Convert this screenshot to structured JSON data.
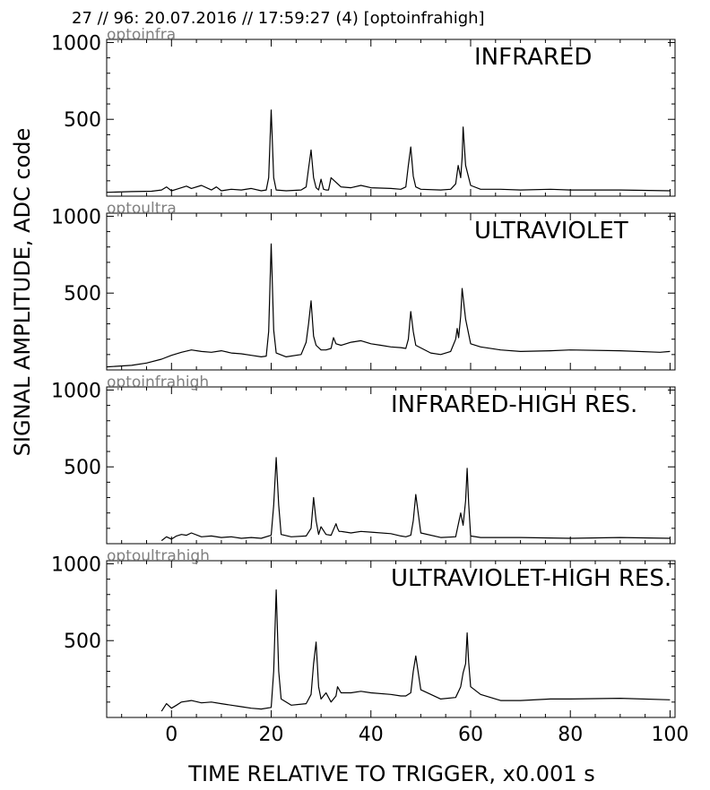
{
  "figure": {
    "header": "27 // 96:   20.07.2016 // 17:59:27 (4)  [optoinfrahigh]",
    "ylabel": "SIGNAL AMPLITUDE,  ADC code",
    "xlabel": "TIME RELATIVE TO TRIGGER,   x0.001 s"
  },
  "chart_data": [
    {
      "type": "line",
      "panel_tag": "optoinfra",
      "title": "INFRARED",
      "xlim": [
        -13,
        101
      ],
      "ylim": [
        0,
        1020
      ],
      "x_ticks": [
        0,
        20,
        40,
        60,
        80,
        100
      ],
      "y_ticks": [
        500,
        1000
      ],
      "series": [
        {
          "x": [
            -13,
            -8,
            -4,
            -2,
            -1,
            0,
            1,
            2,
            3,
            4,
            6,
            8,
            9,
            10,
            12,
            14,
            16,
            18,
            19,
            19.5,
            20,
            20.5,
            21,
            23,
            26,
            27,
            27.5,
            28,
            28.5,
            29,
            29.5,
            30,
            30.5,
            31,
            31.5,
            32,
            33,
            34,
            36,
            38,
            40,
            44,
            46,
            47,
            47.5,
            48,
            48.5,
            49,
            50,
            54,
            56,
            57,
            57.5,
            57.7,
            58,
            58.3,
            58.5,
            59,
            60,
            62,
            66,
            70,
            76,
            80,
            90,
            100
          ],
          "y": [
            25,
            30,
            32,
            40,
            60,
            35,
            45,
            55,
            65,
            50,
            70,
            40,
            60,
            35,
            45,
            40,
            50,
            35,
            40,
            120,
            560,
            120,
            40,
            35,
            40,
            60,
            180,
            300,
            120,
            55,
            40,
            110,
            45,
            40,
            40,
            120,
            90,
            60,
            55,
            70,
            55,
            50,
            45,
            60,
            200,
            320,
            130,
            60,
            45,
            40,
            45,
            80,
            200,
            170,
            120,
            250,
            450,
            200,
            70,
            45,
            45,
            40,
            45,
            40,
            40,
            35
          ]
        }
      ]
    },
    {
      "type": "line",
      "panel_tag": "optoultra",
      "title": "ULTRAVIOLET",
      "xlim": [
        -13,
        101
      ],
      "ylim": [
        0,
        1020
      ],
      "x_ticks": [
        0,
        20,
        40,
        60,
        80,
        100
      ],
      "y_ticks": [
        500,
        1000
      ],
      "series": [
        {
          "x": [
            -13,
            -8,
            -5,
            -2,
            0,
            2,
            4,
            6,
            8,
            10,
            12,
            14,
            16,
            18,
            19,
            19.5,
            20,
            20.5,
            21,
            23,
            26,
            27,
            27.5,
            28,
            28.5,
            29,
            30,
            31,
            32,
            32.5,
            33,
            34,
            36,
            38,
            40,
            42,
            44,
            46,
            47,
            47.5,
            48,
            48.5,
            49,
            52,
            54,
            56,
            57,
            57.3,
            57.6,
            58,
            58.3,
            59,
            60,
            62,
            66,
            70,
            76,
            80,
            90,
            98,
            100
          ],
          "y": [
            20,
            30,
            45,
            70,
            95,
            115,
            130,
            120,
            115,
            125,
            110,
            105,
            95,
            85,
            90,
            250,
            820,
            260,
            110,
            85,
            100,
            180,
            300,
            450,
            220,
            160,
            130,
            130,
            140,
            210,
            170,
            160,
            180,
            190,
            170,
            160,
            150,
            145,
            140,
            200,
            380,
            250,
            160,
            110,
            100,
            120,
            200,
            270,
            210,
            350,
            530,
            330,
            170,
            150,
            130,
            120,
            125,
            130,
            125,
            115,
            120
          ]
        }
      ]
    },
    {
      "type": "line",
      "panel_tag": "optoinfrahigh",
      "title": "INFRARED-HIGH RES.",
      "xlim": [
        -13,
        101
      ],
      "ylim": [
        0,
        1020
      ],
      "x_ticks": [
        0,
        20,
        40,
        60,
        80,
        100
      ],
      "y_ticks": [
        500,
        1000
      ],
      "series": [
        {
          "x": [
            -2,
            -1,
            0,
            1,
            2,
            3,
            4,
            6,
            8,
            10,
            12,
            14,
            16,
            18,
            20,
            20.5,
            21,
            21.5,
            22,
            24,
            27,
            28,
            28.5,
            29,
            29.5,
            30,
            31,
            32,
            33,
            33.3,
            33.6,
            34,
            36,
            38,
            40,
            44,
            46,
            47,
            48,
            48.5,
            49,
            50,
            54,
            57,
            58,
            58.5,
            59,
            59.3,
            59.6,
            60,
            62,
            70,
            80,
            90,
            100
          ],
          "y": [
            20,
            45,
            30,
            50,
            60,
            55,
            70,
            45,
            50,
            40,
            45,
            35,
            40,
            35,
            55,
            250,
            560,
            250,
            60,
            45,
            50,
            100,
            300,
            150,
            60,
            110,
            60,
            55,
            130,
            100,
            80,
            80,
            70,
            80,
            75,
            65,
            50,
            45,
            55,
            150,
            320,
            70,
            40,
            45,
            200,
            120,
            280,
            490,
            260,
            50,
            40,
            40,
            35,
            40,
            35
          ]
        }
      ]
    },
    {
      "type": "line",
      "panel_tag": "optoultrahigh",
      "title": "ULTRAVIOLET-HIGH RES.",
      "xlim": [
        -13,
        101
      ],
      "ylim": [
        0,
        1020
      ],
      "x_ticks": [
        0,
        20,
        40,
        60,
        80,
        100
      ],
      "y_ticks": [
        500,
        1000
      ],
      "series": [
        {
          "x": [
            -2,
            -1,
            0,
            1,
            2,
            4,
            6,
            8,
            10,
            12,
            14,
            16,
            18,
            20,
            20.5,
            21,
            21.5,
            22,
            24,
            27,
            28,
            28.5,
            29,
            29.5,
            30,
            31,
            32,
            33,
            33.3,
            34,
            36,
            38,
            40,
            44,
            46,
            47,
            48,
            48.5,
            49,
            50,
            54,
            57,
            58,
            58.5,
            59,
            59.3,
            59.6,
            60,
            62,
            66,
            70,
            76,
            80,
            90,
            100
          ],
          "y": [
            40,
            90,
            60,
            80,
            100,
            110,
            95,
            100,
            90,
            80,
            70,
            60,
            55,
            65,
            300,
            830,
            300,
            120,
            80,
            90,
            150,
            350,
            490,
            200,
            120,
            160,
            100,
            140,
            200,
            160,
            160,
            170,
            160,
            150,
            140,
            140,
            160,
            300,
            400,
            180,
            120,
            130,
            200,
            290,
            350,
            550,
            360,
            200,
            150,
            110,
            110,
            120,
            120,
            125,
            115
          ]
        }
      ]
    }
  ]
}
